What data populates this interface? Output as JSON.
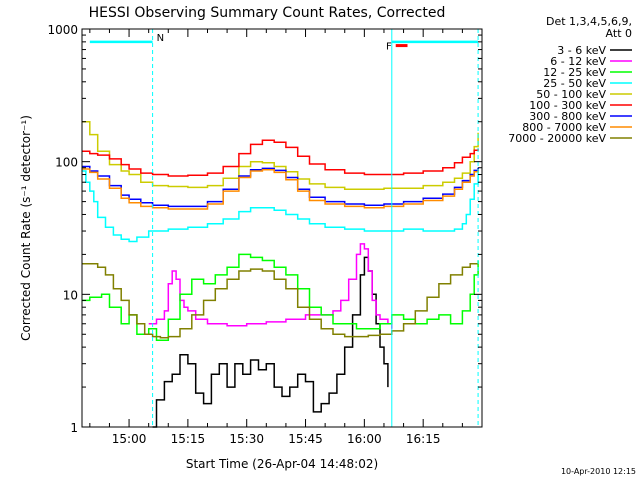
{
  "chart_data": {
    "type": "line",
    "title": "HESSI Observing Summary Count Rates, Corrected",
    "xlabel": "Start Time (26-Apr-04 14:48:02)",
    "ylabel": "Corrected Count Rate (s⁻¹ detector⁻¹)",
    "yscale": "log",
    "ylim": [
      1,
      1000
    ],
    "xlim_minutes": [
      48,
      150
    ],
    "x_unit": "minutes after 14:00 UT",
    "x_ticks": [
      {
        "value": 60,
        "label": "15:00"
      },
      {
        "value": 75,
        "label": "15:15"
      },
      {
        "value": 90,
        "label": "15:30"
      },
      {
        "value": 105,
        "label": "15:45"
      },
      {
        "value": 120,
        "label": "16:00"
      },
      {
        "value": 135,
        "label": "16:15"
      }
    ],
    "y_ticks": [
      {
        "value": 1,
        "label": "1"
      },
      {
        "value": 10,
        "label": "10"
      },
      {
        "value": 100,
        "label": "100"
      },
      {
        "value": 1000,
        "label": "1000"
      }
    ],
    "legend_header": [
      "Det 1,3,4,5,6,9,",
      "Att 0"
    ],
    "legend_position": "right",
    "footer_date": "10-Apr-2010 12:15",
    "annotations": {
      "night_label": "N",
      "flare_label": "F",
      "night_start": 50,
      "night_end": 66,
      "night2_start": 127,
      "night2_end": 149,
      "flare_start": 128,
      "flare_end": 131,
      "night_level": 800,
      "flare_level": 750
    },
    "series": [
      {
        "name": "3 - 6 keV",
        "color": "#000000",
        "x": [
          66,
          67,
          69,
          71,
          73,
          75,
          77,
          79,
          81,
          83,
          85,
          87,
          89,
          91,
          93,
          95,
          97,
          99,
          101,
          103,
          105,
          107,
          109,
          111,
          113,
          115,
          117,
          119,
          120,
          121,
          122,
          123,
          124,
          125,
          126
        ],
        "y": [
          1,
          1.6,
          2.2,
          2.5,
          3.5,
          3.0,
          1.8,
          1.5,
          2.5,
          3.0,
          2.0,
          3.0,
          2.5,
          3.2,
          2.7,
          3.0,
          2.0,
          1.7,
          2.0,
          2.5,
          2.2,
          1.3,
          1.5,
          1.8,
          2.5,
          4.0,
          7.0,
          14.0,
          19.0,
          15.0,
          10.0,
          6.0,
          4.0,
          3.0,
          2.0
        ]
      },
      {
        "name": "6 - 12 keV",
        "color": "#ff00ff",
        "x": [
          65,
          67,
          69,
          70,
          71,
          72,
          73,
          74,
          75,
          77,
          80,
          85,
          90,
          95,
          100,
          105,
          110,
          112,
          114,
          116,
          118,
          119,
          120,
          121,
          122,
          123,
          124,
          126,
          127
        ],
        "y": [
          6.0,
          6.5,
          7.5,
          12.0,
          15.0,
          13.0,
          9.0,
          8.0,
          7.5,
          6.5,
          6.0,
          5.8,
          6.0,
          6.2,
          6.5,
          7.0,
          7.0,
          7.5,
          9.0,
          13.0,
          20.0,
          24.0,
          22.0,
          15.0,
          9.0,
          7.0,
          6.5,
          6.0,
          5.5
        ]
      },
      {
        "name": "12 - 25 keV",
        "color": "#00ff00",
        "x": [
          48,
          50,
          53,
          55,
          58,
          60,
          62,
          65,
          67,
          70,
          73,
          76,
          79,
          82,
          85,
          88,
          91,
          94,
          97,
          100,
          103,
          106,
          109,
          112,
          115,
          118,
          121,
          124,
          127,
          130,
          133,
          136,
          139,
          142,
          145,
          147,
          148,
          149
        ],
        "y": [
          9.0,
          9.5,
          10.0,
          8.0,
          6.0,
          7.0,
          5.0,
          5.5,
          4.5,
          6.5,
          10.0,
          13.0,
          12.0,
          14.0,
          16.0,
          20.0,
          19.0,
          18.0,
          16.0,
          14.0,
          11.0,
          8.0,
          7.0,
          6.0,
          6.0,
          5.5,
          5.5,
          6.0,
          7.0,
          6.5,
          6.0,
          6.5,
          7.0,
          6.0,
          7.5,
          10.0,
          14.0,
          18.0
        ]
      },
      {
        "name": "25 - 50 keV",
        "color": "#00ffff",
        "x": [
          48,
          49,
          50,
          51,
          52,
          54,
          56,
          58,
          60,
          62,
          65,
          70,
          75,
          80,
          84,
          88,
          91,
          94,
          97,
          100,
          103,
          106,
          110,
          115,
          120,
          125,
          130,
          135,
          140,
          143,
          145,
          146,
          147,
          148,
          149
        ],
        "y": [
          85.0,
          70.0,
          60.0,
          50.0,
          38.0,
          32.0,
          28.0,
          26.0,
          25.0,
          27.0,
          30.0,
          31.0,
          32.0,
          34.0,
          37.0,
          42.0,
          45.0,
          45.0,
          43.0,
          40.0,
          37.0,
          34.0,
          32.0,
          31.0,
          30.0,
          30.0,
          31.0,
          30.0,
          30.0,
          31.0,
          34.0,
          40.0,
          52.0,
          68.0,
          90.0
        ]
      },
      {
        "name": "50 - 100 keV",
        "color": "#cccc00",
        "x": [
          48,
          50,
          52,
          55,
          58,
          60,
          63,
          66,
          70,
          75,
          80,
          84,
          88,
          91,
          94,
          97,
          100,
          103,
          106,
          110,
          115,
          120,
          125,
          130,
          135,
          140,
          143,
          145,
          147,
          148,
          149
        ],
        "y": [
          200.0,
          160.0,
          120.0,
          95.0,
          85.0,
          80.0,
          70.0,
          66.0,
          65.0,
          64.0,
          66.0,
          75.0,
          92.0,
          100.0,
          98.0,
          92.0,
          84.0,
          74.0,
          68.0,
          64.0,
          62.0,
          62.0,
          63.0,
          63.0,
          66.0,
          70.0,
          75.0,
          82.0,
          100.0,
          130.0,
          165.0
        ]
      },
      {
        "name": "100 - 300 keV",
        "color": "#ff0000",
        "x": [
          48,
          50,
          52,
          55,
          58,
          60,
          63,
          66,
          70,
          75,
          80,
          84,
          88,
          91,
          94,
          97,
          100,
          103,
          106,
          110,
          115,
          120,
          125,
          130,
          135,
          140,
          143,
          145,
          147,
          148,
          149
        ],
        "y": [
          120.0,
          115.0,
          112.0,
          105.0,
          95.0,
          88.0,
          82.0,
          80.0,
          78.0,
          79.0,
          82.0,
          92.0,
          115.0,
          135.0,
          145.0,
          140.0,
          128.0,
          110.0,
          96.0,
          87.0,
          82.0,
          80.0,
          80.0,
          82.0,
          85.0,
          90.0,
          98.0,
          108.0,
          115.0,
          122.0,
          125.0
        ]
      },
      {
        "name": "300 - 800 keV",
        "color": "#0000ff",
        "x": [
          48,
          50,
          52,
          55,
          58,
          60,
          63,
          66,
          70,
          75,
          80,
          84,
          88,
          91,
          94,
          97,
          100,
          103,
          106,
          110,
          115,
          120,
          125,
          130,
          135,
          140,
          143,
          145,
          147,
          148,
          149
        ],
        "y": [
          92.0,
          85.0,
          78.0,
          66.0,
          56.0,
          52.0,
          49.0,
          47.0,
          46.0,
          46.0,
          50.0,
          62.0,
          78.0,
          87.0,
          89.0,
          86.0,
          76.0,
          62.0,
          54.0,
          50.0,
          48.0,
          47.0,
          48.0,
          50.0,
          53.0,
          57.0,
          64.0,
          72.0,
          80.0,
          86.0,
          90.0
        ]
      },
      {
        "name": "800 - 7000 keV",
        "color": "#ff8c00",
        "x": [
          48,
          50,
          52,
          55,
          58,
          60,
          63,
          66,
          70,
          75,
          80,
          84,
          88,
          91,
          94,
          97,
          100,
          103,
          106,
          110,
          115,
          120,
          125,
          130,
          135,
          140,
          143,
          145,
          147,
          148,
          149
        ],
        "y": [
          88.0,
          83.0,
          74.0,
          63.0,
          53.0,
          49.0,
          46.0,
          45.0,
          44.0,
          44.0,
          48.0,
          60.0,
          76.0,
          85.0,
          87.0,
          83.0,
          73.0,
          60.0,
          51.0,
          48.0,
          46.0,
          45.0,
          46.0,
          48.0,
          51.0,
          55.0,
          62.0,
          70.0,
          78.0,
          84.0,
          88.0
        ]
      },
      {
        "name": "7000 - 20000 keV",
        "color": "#808000",
        "x": [
          48,
          50,
          52,
          54,
          56,
          58,
          60,
          62,
          64,
          66,
          68,
          70,
          73,
          76,
          79,
          82,
          85,
          88,
          91,
          94,
          97,
          100,
          103,
          106,
          109,
          112,
          115,
          118,
          121,
          124,
          127,
          130,
          133,
          136,
          139,
          142,
          145,
          147,
          149
        ],
        "y": [
          17.0,
          17.0,
          16.0,
          14.0,
          11.0,
          9.0,
          7.0,
          6.0,
          5.0,
          4.8,
          4.7,
          4.8,
          5.5,
          7.0,
          9.0,
          11.0,
          13.0,
          15.0,
          15.5,
          15.0,
          13.0,
          11.0,
          8.0,
          6.5,
          5.5,
          5.0,
          4.8,
          4.8,
          4.9,
          5.0,
          5.3,
          6.0,
          7.5,
          9.5,
          12.0,
          14.0,
          16.0,
          17.0,
          17.0
        ]
      }
    ]
  }
}
